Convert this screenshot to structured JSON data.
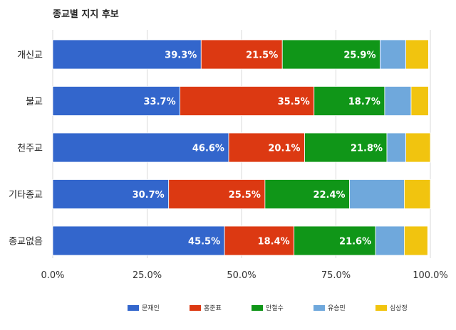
{
  "chart_data": {
    "type": "bar",
    "orientation": "horizontal",
    "stacked": true,
    "title": "종교별 지지 후보",
    "categories": [
      "개신교",
      "불교",
      "천주교",
      "기타종교",
      "종교없음"
    ],
    "series": [
      {
        "name": "문재인",
        "color": "#3366cc",
        "values": [
          39.3,
          33.7,
          46.6,
          30.7,
          45.5
        ],
        "labels": [
          "39.3%",
          "33.7%",
          "46.6%",
          "30.7%",
          "45.5%"
        ]
      },
      {
        "name": "홍준표",
        "color": "#dc3912",
        "values": [
          21.5,
          35.5,
          20.1,
          25.5,
          18.4
        ],
        "labels": [
          "21.5%",
          "35.5%",
          "20.1%",
          "25.5%",
          "18.4%"
        ]
      },
      {
        "name": "안철수",
        "color": "#109618",
        "values": [
          25.9,
          18.7,
          21.8,
          22.4,
          21.6
        ],
        "labels": [
          "25.9%",
          "18.7%",
          "21.8%",
          "22.4%",
          "21.6%"
        ]
      },
      {
        "name": "유승민",
        "color": "#6fa8dc",
        "values": [
          6.8,
          7.0,
          5.0,
          14.5,
          7.6
        ],
        "labels": [
          "",
          "",
          "",
          "",
          ""
        ]
      },
      {
        "name": "심상정",
        "color": "#f1c40f",
        "values": [
          6.0,
          4.6,
          6.5,
          6.9,
          6.2
        ],
        "labels": [
          "",
          "",
          "",
          "",
          ""
        ]
      }
    ],
    "xlim": [
      0,
      100
    ],
    "xticks": [
      0,
      25,
      50,
      75,
      100
    ],
    "xtick_labels": [
      "0.0%",
      "25.0%",
      "50.0%",
      "75.0%",
      "100.0%"
    ],
    "grid": true,
    "legend_position": "bottom"
  }
}
